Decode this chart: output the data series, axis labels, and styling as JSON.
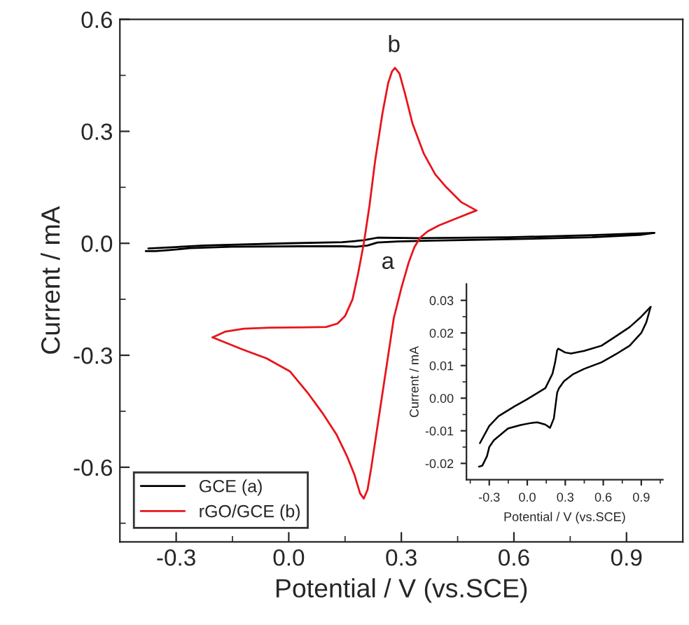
{
  "chart_data": [
    {
      "type": "line",
      "xlabel": "Potential / V (vs.SCE)",
      "ylabel": "Current / mA",
      "xlim": [
        -0.45,
        1.05
      ],
      "ylim": [
        -0.8,
        0.6
      ],
      "xticks": [
        {
          "value": -0.3,
          "label": "-0.3"
        },
        {
          "value": 0,
          "label": "0.0"
        },
        {
          "value": 0.3,
          "label": "0.3"
        },
        {
          "value": 0.6,
          "label": "0.6"
        },
        {
          "value": 0.9,
          "label": "0.9"
        },
        {
          "value": -0.15,
          "label": null
        },
        {
          "value": 0.15,
          "label": null
        },
        {
          "value": 0.45,
          "label": null
        },
        {
          "value": 0.75,
          "label": null
        }
      ],
      "yticks": [
        {
          "value": -0.6,
          "label": "-0.6"
        },
        {
          "value": -0.3,
          "label": "-0.3"
        },
        {
          "value": 0,
          "label": "0.0"
        },
        {
          "value": 0.3,
          "label": "0.3"
        },
        {
          "value": 0.6,
          "label": "0.6"
        },
        {
          "value": -0.75,
          "label": null
        },
        {
          "value": -0.45,
          "label": null
        },
        {
          "value": -0.15,
          "label": null
        },
        {
          "value": 0.15,
          "label": null
        },
        {
          "value": 0.45,
          "label": null
        }
      ],
      "legend": "bottom left",
      "grid": false,
      "annotations": [
        "a",
        "b"
      ],
      "series": [
        {
          "name": "GCE (a)",
          "color": "#000000",
          "x": [
            -0.374,
            -0.226,
            -0.004,
            0.143,
            0.199,
            0.236,
            0.245,
            0.346,
            0.586,
            0.808,
            0.974
          ],
          "values": [
            -0.014,
            -0.006,
            0.0,
            0.003,
            0.008,
            0.015,
            0.015,
            0.014,
            0.016,
            0.022,
            0.028
          ]
        },
        {
          "color": "#000000",
          "x": [
            0.974,
            0.94,
            0.808,
            0.586,
            0.364,
            0.29,
            0.236,
            0.21,
            0.18,
            0.143,
            0.032,
            -0.152,
            -0.263,
            -0.318,
            -0.355,
            -0.381
          ],
          "values": [
            0.028,
            0.023,
            0.016,
            0.011,
            0.007,
            0.005,
            0.002,
            -0.006,
            -0.009,
            -0.008,
            -0.008,
            -0.009,
            -0.013,
            -0.018,
            -0.021,
            -0.021
          ]
        },
        {
          "name": "rGO/GCE (b)",
          "color": "#e8141c",
          "x": [
            -0.203,
            -0.17,
            -0.12,
            -0.05,
            0.05,
            0.1,
            0.13,
            0.15,
            0.17,
            0.185,
            0.2,
            0.215,
            0.23,
            0.25,
            0.265,
            0.275,
            0.283,
            0.295,
            0.31,
            0.33,
            0.36,
            0.39,
            0.42,
            0.46,
            0.5
          ],
          "values": [
            -0.252,
            -0.237,
            -0.229,
            -0.226,
            -0.225,
            -0.224,
            -0.215,
            -0.195,
            -0.15,
            -0.08,
            0.0,
            0.1,
            0.22,
            0.35,
            0.43,
            0.46,
            0.47,
            0.455,
            0.4,
            0.32,
            0.24,
            0.185,
            0.15,
            0.11,
            0.088
          ]
        },
        {
          "color": "#e8141c",
          "x": [
            0.5,
            0.45,
            0.4,
            0.37,
            0.35,
            0.335,
            0.32,
            0.3,
            0.28,
            0.265,
            0.25,
            0.235,
            0.22,
            0.21,
            0.2,
            0.19,
            0.175,
            0.155,
            0.127,
            0.09,
            0.05,
            0.003,
            -0.06,
            -0.122,
            -0.203
          ],
          "values": [
            0.088,
            0.068,
            0.048,
            0.032,
            0.015,
            -0.01,
            -0.05,
            -0.12,
            -0.2,
            -0.3,
            -0.4,
            -0.5,
            -0.6,
            -0.66,
            -0.684,
            -0.67,
            -0.62,
            -0.57,
            -0.512,
            -0.455,
            -0.4,
            -0.343,
            -0.308,
            -0.285,
            -0.252
          ]
        }
      ]
    },
    {
      "type": "line",
      "xlabel": "Potential / V (vs.SCE)",
      "ylabel": "Current / mA",
      "xlim": [
        -0.48,
        1.07
      ],
      "ylim": [
        -0.025,
        0.035
      ],
      "xticks": [
        {
          "value": -0.3,
          "label": "-0.3"
        },
        {
          "value": 0,
          "label": "0.0"
        },
        {
          "value": 0.3,
          "label": "0.3"
        },
        {
          "value": 0.6,
          "label": "0.6"
        },
        {
          "value": 0.9,
          "label": "0.9"
        },
        {
          "value": -0.45,
          "label": null
        },
        {
          "value": -0.15,
          "label": null
        },
        {
          "value": 0.15,
          "label": null
        },
        {
          "value": 0.45,
          "label": null
        },
        {
          "value": 0.75,
          "label": null
        },
        {
          "value": 1.05,
          "label": null
        }
      ],
      "yticks": [
        {
          "value": -0.02,
          "label": "-0.02"
        },
        {
          "value": -0.01,
          "label": "-0.01"
        },
        {
          "value": 0,
          "label": "0.00"
        },
        {
          "value": 0.01,
          "label": "0.01"
        },
        {
          "value": 0.02,
          "label": "0.02"
        },
        {
          "value": 0.03,
          "label": "0.03"
        },
        {
          "value": -0.015,
          "label": null
        },
        {
          "value": -0.005,
          "label": null
        },
        {
          "value": 0.005,
          "label": null
        },
        {
          "value": 0.015,
          "label": null
        },
        {
          "value": 0.025,
          "label": null
        }
      ],
      "grid": false,
      "series": [
        {
          "color": "#000000",
          "x": [
            -0.374,
            -0.3,
            -0.226,
            -0.1,
            -0.004,
            0.143,
            0.199,
            0.22,
            0.236,
            0.245,
            0.3,
            0.346,
            0.45,
            0.586,
            0.7,
            0.808,
            0.9,
            0.974
          ],
          "values": [
            -0.0138,
            -0.0085,
            -0.0055,
            -0.0025,
            -0.0004,
            0.0031,
            0.0075,
            0.011,
            0.0147,
            0.0152,
            0.014,
            0.0137,
            0.0145,
            0.0161,
            0.019,
            0.0218,
            0.025,
            0.028
          ]
        },
        {
          "color": "#000000",
          "x": [
            0.974,
            0.94,
            0.9,
            0.808,
            0.7,
            0.586,
            0.45,
            0.364,
            0.29,
            0.25,
            0.236,
            0.21,
            0.18,
            0.143,
            0.08,
            0.032,
            -0.05,
            -0.152,
            -0.263,
            -0.3,
            -0.318,
            -0.355,
            -0.381
          ],
          "values": [
            0.028,
            0.0233,
            0.02,
            0.0161,
            0.0135,
            0.011,
            0.009,
            0.0074,
            0.0052,
            0.003,
            0.0017,
            -0.0062,
            -0.0091,
            -0.0081,
            -0.0074,
            -0.0076,
            -0.0082,
            -0.0093,
            -0.0129,
            -0.015,
            -0.0178,
            -0.0207,
            -0.021
          ]
        }
      ]
    }
  ]
}
